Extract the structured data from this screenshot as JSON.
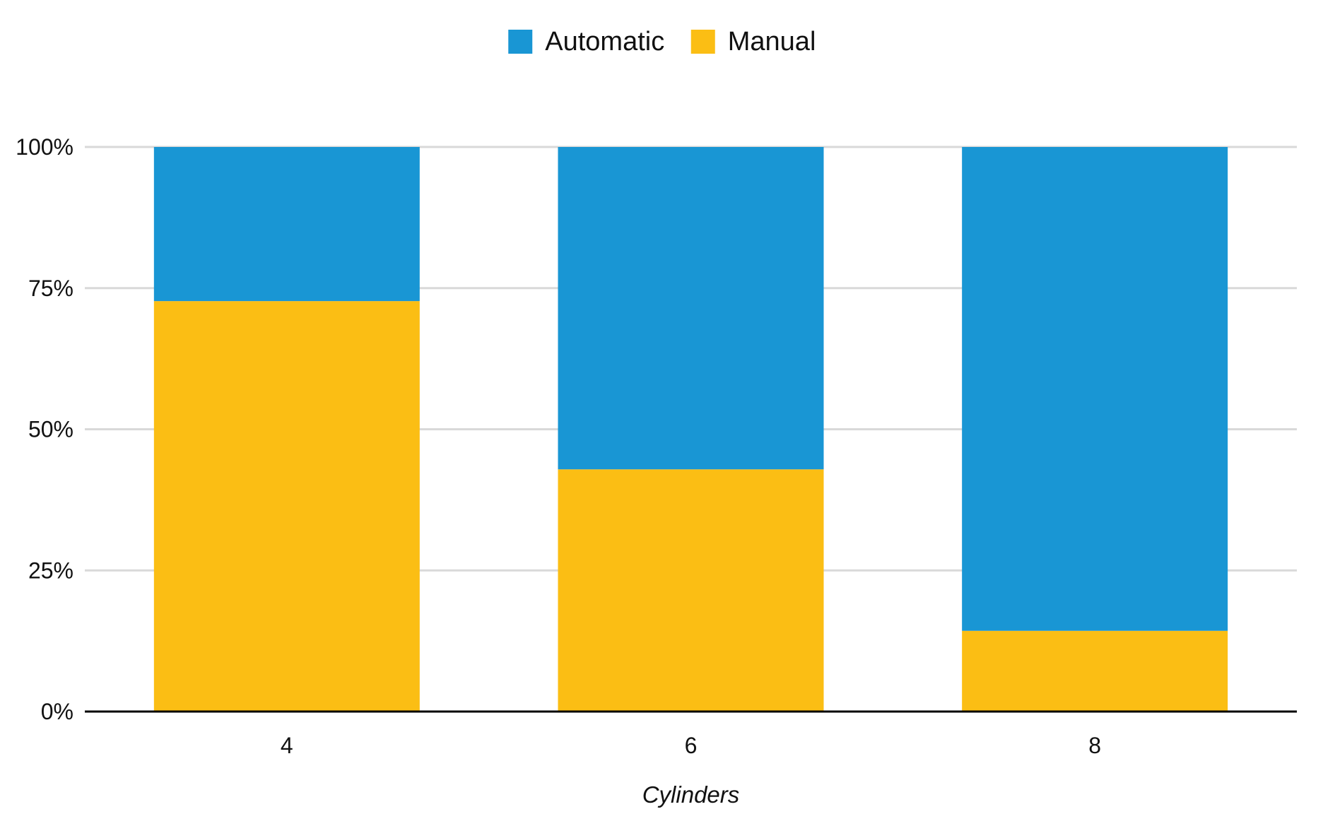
{
  "chart_data": {
    "type": "bar",
    "stacked": true,
    "normalized": true,
    "categories": [
      "4",
      "6",
      "8"
    ],
    "series": [
      {
        "name": "Manual",
        "color": "#fbbe14",
        "values": [
          72.7,
          42.9,
          14.3
        ]
      },
      {
        "name": "Automatic",
        "color": "#1996d4",
        "values": [
          27.3,
          57.1,
          85.7
        ]
      }
    ],
    "legend_order": [
      "Automatic",
      "Manual"
    ],
    "legend_position": "top-center",
    "xlabel": "Cylinders",
    "ylabel": "",
    "ylim": [
      0,
      100
    ],
    "yticks": [
      0,
      25,
      50,
      75,
      100
    ],
    "ytick_labels": [
      "0%",
      "25%",
      "50%",
      "75%",
      "100%"
    ],
    "grid": true
  }
}
